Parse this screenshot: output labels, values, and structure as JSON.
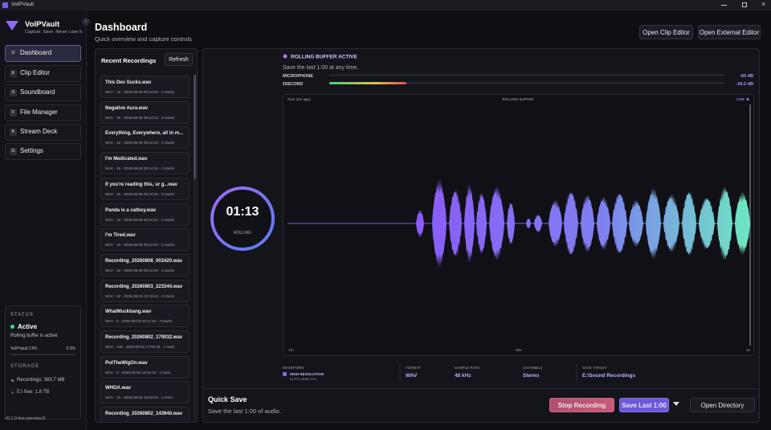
{
  "window": {
    "title": "VoIPVault"
  },
  "sidebar": {
    "app_name": "VoIPVault",
    "tagline": "Capture. Save. Never Lose It.",
    "nav": [
      {
        "key": "D",
        "label": "Dashboard"
      },
      {
        "key": "E",
        "label": "Clip Editor"
      },
      {
        "key": "S",
        "label": "Soundboard"
      },
      {
        "key": "F",
        "label": "File Manager"
      },
      {
        "key": "K",
        "label": "Stream Deck"
      },
      {
        "key": "G",
        "label": "Settings"
      }
    ],
    "status": {
      "heading": "STATUS",
      "state": "Active",
      "detail": "Rolling buffer is active",
      "cpu_label": "VoIPVault CPU",
      "cpu_value": "0.3%",
      "storage_heading": "STORAGE",
      "recordings": "Recordings: 383.7 MB",
      "free": "E:\\ free: 1.8 TB"
    },
    "version": "v0.1.0-live-preview.8"
  },
  "header": {
    "title": "Dashboard",
    "subtitle": "Quick overview and capture controls",
    "buttons": [
      "Open Clip Editor",
      "Open External Editor"
    ]
  },
  "recent": {
    "title": "Recent Recordings",
    "refresh": "Refresh",
    "items": [
      {
        "name": "This Dev Sucks.wav",
        "meta": "WAV - 15 - 2026-08-08 00:24:25 - 2 tracks"
      },
      {
        "name": "Negative Aura.wav",
        "meta": "WAV - 15 - 2026-08-08 00:24:23 - 2 tracks"
      },
      {
        "name": "Everything, Everywhere, all in m...",
        "meta": "WAV - 15 - 2026-08-08 00:24:23 - 2 tracks"
      },
      {
        "name": "I'm Medicated.wav",
        "meta": "WAV - 15 - 2026-08-08 00:24:22 - 2 tracks"
      },
      {
        "name": "If you're reading this, ur g...wav",
        "meta": "WAV - 15 - 2026-08-08 00:24:22 - 2 tracks"
      },
      {
        "name": "Panda is a catboy.wav",
        "meta": "WAV - 15 - 2026-08-08 00:24:21 - 2 tracks"
      },
      {
        "name": "I'm Tired.wav",
        "meta": "WAV - 15 - 2026-08-08 00:24:20 - 2 tracks"
      },
      {
        "name": "Recording_20260808_002420.wav",
        "meta": "WAV - 15 - 2026-08-08 00:24:20 - 2 tracks"
      },
      {
        "name": "Recording_20260803_223344.wav",
        "meta": "WAV - 10 - 2026-08-03 22:33:44 - 2 tracks"
      },
      {
        "name": "WhatMuckbang.wav",
        "meta": "WAV - 3 - 2026-08-03 20:21:54 - 2 tracks"
      },
      {
        "name": "Recording_20260802_170032.wav",
        "meta": "WAV - 120 - 2026-08-02 17:00:32 - 1 track"
      },
      {
        "name": "PutTheWigOn.wav",
        "meta": "WAV - 3 - 2026-08-02 15:03:31 - 1 track"
      },
      {
        "name": "WHOA.wav",
        "meta": "WAV - 15 - 2026-08-02 15:02:20 - 1 track"
      },
      {
        "name": "Recording_20260802_143940.wav",
        "meta": "WAV - 15 - 2026-08-02 14:39:40 - 1 track"
      }
    ]
  },
  "buffer": {
    "timer": "01:13",
    "timer_label": "ROLLING",
    "status": "ROLLING BUFFER ACTIVE",
    "hint": "Save the last 1:00 at any time.",
    "meters": [
      {
        "name": "MICROPHONE",
        "level": "-60 dB"
      },
      {
        "name": "DISCORD",
        "level": "-34.2 dB"
      }
    ],
    "waveform": {
      "old": "OLD (1m ago)",
      "title": "ROLLING BUFFER",
      "live": "LIVE",
      "axis": [
        "-1m",
        "-30s",
        "0s"
      ]
    },
    "waveform_setting": {
      "label": "WAVEFORM",
      "option": "HIGH RESOLUTION",
      "note": "60 FPS, MORE CPU"
    },
    "settings": [
      {
        "label": "FORMAT",
        "value": "WAV"
      },
      {
        "label": "SAMPLE RATE",
        "value": "48 kHz"
      },
      {
        "label": "CHANNELS",
        "value": "Stereo"
      },
      {
        "label": "SAVE TARGET",
        "value": "E:\\Sound Recordings"
      }
    ]
  },
  "quick_save": {
    "title": "Quick Save",
    "subtitle": "Save the last 1:00 of audio.",
    "stop": "Stop Recording",
    "save": "Save Last 1:00",
    "open": "Open Directory"
  }
}
